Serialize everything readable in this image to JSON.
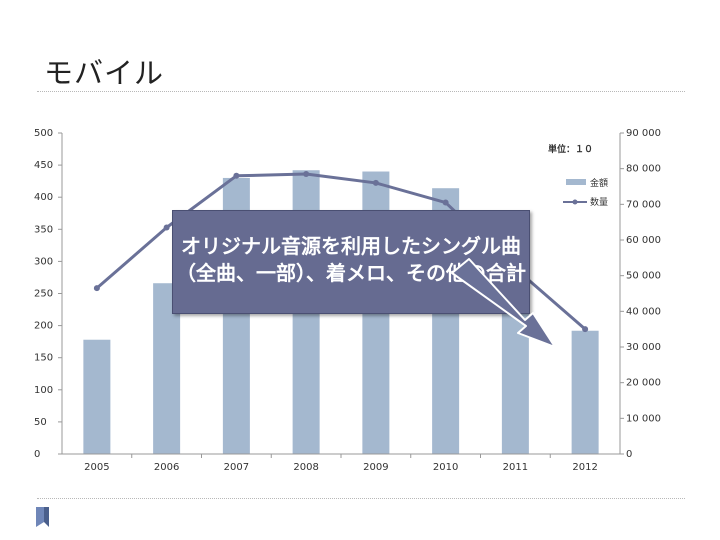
{
  "slide": {
    "title": "モバイル"
  },
  "callout": {
    "text": "オリジナル音源を利用したシングル曲（全曲、一部）、着メロ、その他の合計"
  },
  "chart_data": {
    "type": "bar",
    "categories": [
      "2005",
      "2006",
      "2007",
      "2008",
      "2009",
      "2010",
      "2011",
      "2012"
    ],
    "series": [
      {
        "name": "金額",
        "type": "bar",
        "axis": "left",
        "values": [
          178,
          266,
          430,
          442,
          440,
          414,
          300,
          192
        ],
        "color": "#a4b8cf"
      },
      {
        "name": "数量",
        "type": "line",
        "axis": "right",
        "values": [
          46500,
          63500,
          78000,
          78500,
          76000,
          70500,
          52000,
          35000
        ],
        "color": "#6a7198"
      }
    ],
    "unit_note": "単位：１０",
    "y_left": {
      "min": 0,
      "max": 500,
      "ticks": [
        0,
        50,
        100,
        150,
        200,
        250,
        300,
        350,
        400,
        450,
        500
      ]
    },
    "y_right": {
      "min": 0,
      "max": 90000,
      "ticks": [
        0,
        10000,
        20000,
        30000,
        40000,
        50000,
        60000,
        70000,
        80000,
        90000
      ],
      "tick_labels": [
        "0",
        "10 000",
        "20 000",
        "30 000",
        "40 000",
        "50 000",
        "60 000",
        "70 000",
        "80 000",
        "90 000"
      ]
    },
    "legend_position": "top-right",
    "grid": false
  }
}
